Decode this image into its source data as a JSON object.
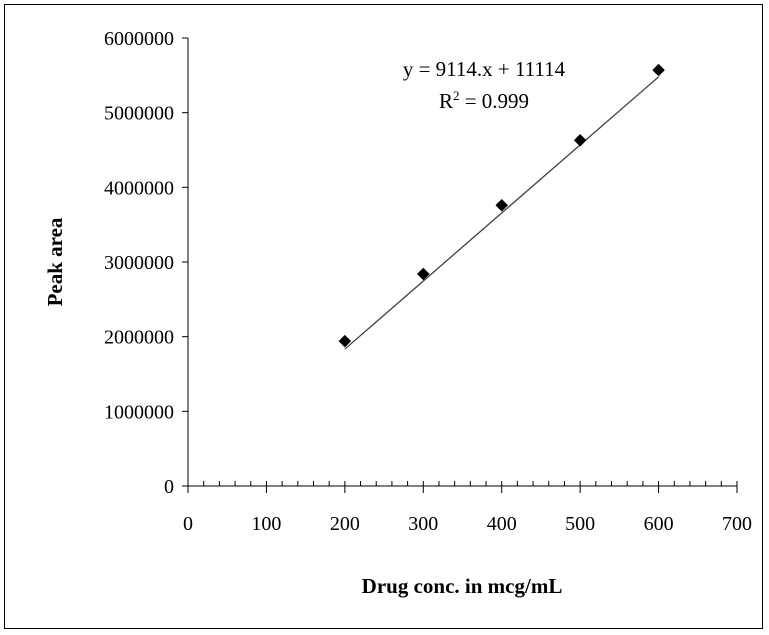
{
  "chart_data": {
    "type": "scatter",
    "title": "",
    "xlabel": "Drug conc. in mcg/mL",
    "ylabel": "Peak area",
    "xlim": [
      0,
      700
    ],
    "ylim": [
      0,
      6000000
    ],
    "x_ticks": [
      0,
      100,
      200,
      300,
      400,
      500,
      600,
      700
    ],
    "y_ticks": [
      0,
      1000000,
      2000000,
      3000000,
      4000000,
      5000000,
      6000000
    ],
    "grid": false,
    "legend": "none",
    "series": [
      {
        "marker": "diamond",
        "color": "#000000",
        "x": [
          200,
          300,
          400,
          500,
          600
        ],
        "y": [
          1940000,
          2840000,
          3760000,
          4630000,
          5570000
        ]
      }
    ],
    "trendline": {
      "type": "linear",
      "slope": 9114,
      "intercept": 11114,
      "x_range": [
        200,
        600
      ],
      "color": "#404040"
    },
    "annotations": {
      "equation": "y = 9114.x + 11114",
      "r_squared_prefix": "R",
      "r_squared_sup": "2",
      "r_squared_value": " = 0.999"
    }
  }
}
